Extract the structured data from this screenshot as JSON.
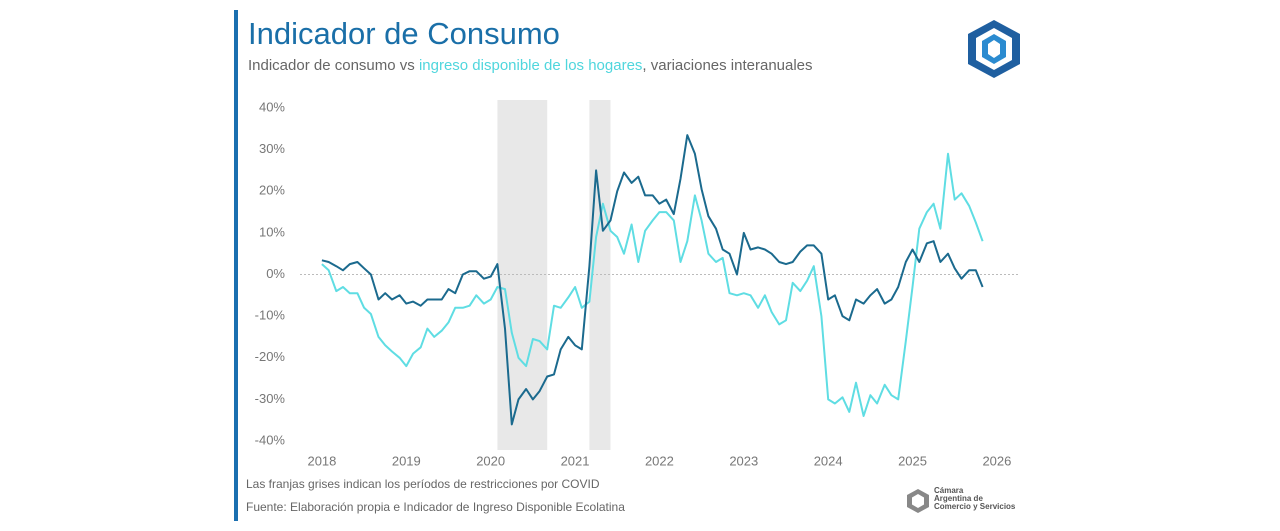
{
  "chart_data": {
    "type": "line",
    "title": "Indicador de Consumo",
    "subtitle_connector": "vs",
    "subtitle_suffix": ", variaciones interanuales",
    "x": [
      2018,
      2018.08,
      2018.17,
      2018.25,
      2018.33,
      2018.42,
      2018.5,
      2018.58,
      2018.67,
      2018.75,
      2018.83,
      2018.92,
      2019,
      2019.08,
      2019.17,
      2019.25,
      2019.33,
      2019.42,
      2019.5,
      2019.58,
      2019.67,
      2019.75,
      2019.83,
      2019.92,
      2020,
      2020.08,
      2020.17,
      2020.25,
      2020.33,
      2020.42,
      2020.5,
      2020.58,
      2020.67,
      2020.75,
      2020.83,
      2020.92,
      2021,
      2021.08,
      2021.17,
      2021.25,
      2021.33,
      2021.42,
      2021.5,
      2021.58,
      2021.67,
      2021.75,
      2021.83,
      2021.92,
      2022,
      2022.08,
      2022.17,
      2022.25,
      2022.33,
      2022.42,
      2022.5,
      2022.58,
      2022.67,
      2022.75,
      2022.83,
      2022.92,
      2023,
      2023.08,
      2023.17,
      2023.25,
      2023.33,
      2023.42,
      2023.5,
      2023.58,
      2023.67,
      2023.75,
      2023.83,
      2023.92,
      2024,
      2024.08,
      2024.17,
      2024.25,
      2024.33,
      2024.42,
      2024.5,
      2024.58,
      2024.67,
      2024.75,
      2024.83,
      2024.92,
      2025,
      2025.08,
      2025.17,
      2025.25,
      2025.33,
      2025.42,
      2025.5,
      2025.58,
      2025.67,
      2025.75,
      2025.83
    ],
    "series": [
      {
        "name": "Indicador de consumo",
        "color": "#1b6a8e",
        "values": [
          3.4,
          3,
          2,
          1,
          2.5,
          3,
          1.5,
          0,
          -6,
          -4.5,
          -6,
          -5,
          -7,
          -6.5,
          -7.5,
          -6,
          -6,
          -6,
          -3.5,
          -4.5,
          0,
          0.8,
          0.8,
          -1,
          -0.5,
          2.5,
          -13,
          -36,
          -30,
          -27.5,
          -30,
          -28,
          -24.5,
          -24,
          -18,
          -15,
          -17,
          -18,
          2,
          25,
          10.5,
          13,
          20,
          24.5,
          22,
          23.5,
          19,
          19,
          17,
          18,
          14.5,
          23,
          33.5,
          29,
          20.5,
          14,
          11,
          6,
          5,
          0,
          10,
          6,
          6.5,
          6,
          5,
          3,
          2.5,
          3,
          5.5,
          7,
          7,
          5,
          -6,
          -5,
          -10,
          -11,
          -6,
          -7,
          -5,
          -3.5,
          -7,
          -6,
          -3,
          3,
          6,
          3,
          7.5,
          8,
          3,
          5,
          1.5,
          -1,
          1,
          1,
          -3
        ]
      },
      {
        "name": "ingreso disponible de los hogares",
        "color": "#5fdde3",
        "values": [
          2.5,
          1,
          -4,
          -3,
          -4.5,
          -4.5,
          -8,
          -9.5,
          -15,
          -17,
          -18.5,
          -20,
          -22,
          -19,
          -17.5,
          -13,
          -15,
          -13.5,
          -11.5,
          -8,
          -8,
          -7.5,
          -5,
          -7,
          -6,
          -3,
          -3.5,
          -14,
          -20,
          -22,
          -15.5,
          -16,
          -18,
          -7.5,
          -8,
          -5.5,
          -3,
          -8,
          -6.5,
          9,
          17,
          10.5,
          9,
          5,
          12,
          3,
          10.5,
          13,
          15,
          15,
          13,
          3,
          8,
          19,
          13,
          5,
          3,
          4,
          -4.5,
          -5,
          -4.5,
          -5,
          -8,
          -5,
          -9,
          -12,
          -11,
          -2,
          -4,
          -1.5,
          2,
          -10,
          -30,
          -31,
          -29.5,
          -33,
          -26,
          -34,
          -29,
          -31,
          -26.5,
          -29,
          -30,
          -16,
          -3,
          11,
          15,
          17,
          11,
          29,
          18,
          19.5,
          16.5,
          12.5,
          8
        ]
      }
    ],
    "xlim": [
      2017.74,
      2026.25
    ],
    "xticks": [
      2018,
      2019,
      2020,
      2021,
      2022,
      2023,
      2024,
      2025,
      2026
    ],
    "ylim": [
      -40,
      40
    ],
    "yticks": [
      {
        "value": 40,
        "label": "40%"
      },
      {
        "value": 30,
        "label": "30%"
      },
      {
        "value": 20,
        "label": "20%"
      },
      {
        "value": 10,
        "label": "10%"
      },
      {
        "value": 0,
        "label": "0%"
      },
      {
        "value": -10,
        "label": "-10%"
      },
      {
        "value": -20,
        "label": "-20%"
      },
      {
        "value": -30,
        "label": "-30%"
      },
      {
        "value": -40,
        "label": "-40%"
      }
    ],
    "shaded_regions": [
      [
        2020.08,
        2020.67
      ],
      [
        2021.17,
        2021.42
      ]
    ],
    "shade_color": "#e8e8e8",
    "zero_line": true,
    "notes": [
      "Las franjas grises indican los períodos de restricciones por COVID",
      "Fuente: Elaboración propia e Indicador de Ingreso Disponible Ecolatina"
    ],
    "org_name": [
      "Cámara",
      "Argentina de",
      "Comercio y Servicios"
    ]
  }
}
